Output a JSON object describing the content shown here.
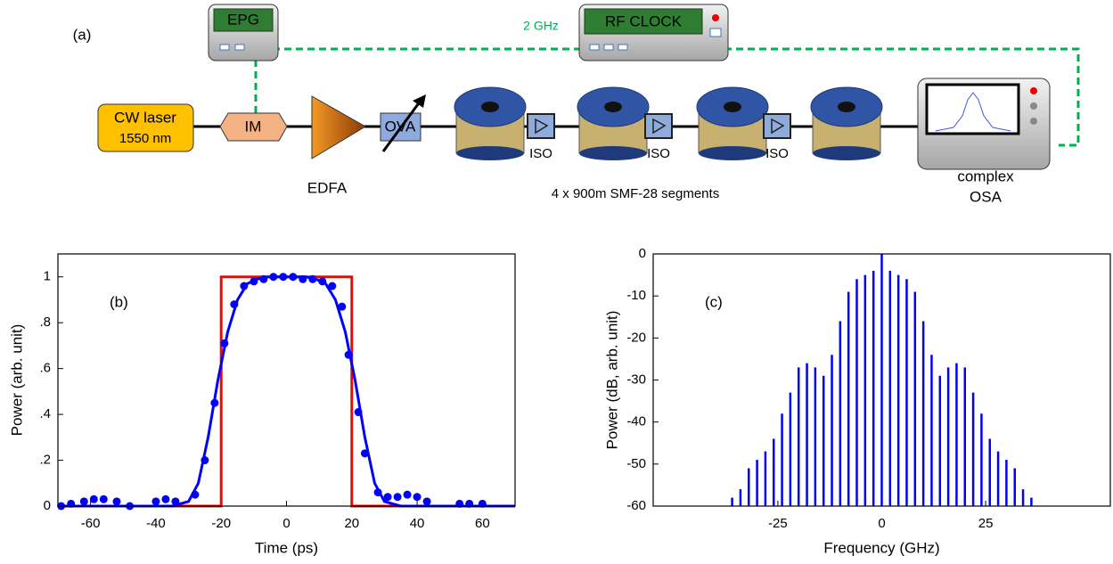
{
  "diagram": {
    "panel": "(a)",
    "epg": "EPG",
    "rf_rate": "2 GHz",
    "rf_clock": "RF CLOCK",
    "laser": [
      "CW laser",
      "1550 nm"
    ],
    "modulator": "IM",
    "amplifier": "EDFA",
    "attenuator": "OVA",
    "isolators": [
      "ISO",
      "ISO",
      "ISO"
    ],
    "fiber": "4 x 900m SMF-28 segments",
    "analyzer": [
      "complex",
      "OSA"
    ]
  },
  "chart_data": [
    {
      "type": "line",
      "annotation": "(b)",
      "x_label": "Time (ps)",
      "y_label": "Power (arb. unit)",
      "xlim": [
        -70,
        70
      ],
      "xticks": [
        -60,
        -40,
        -20,
        0,
        20,
        40,
        60
      ],
      "ylim": [
        0,
        1.1
      ],
      "yticks": [
        0,
        {
          "value": 0.2,
          "label": ".2"
        },
        {
          "value": 0.4,
          "label": ".4"
        },
        {
          "value": 0.6,
          "label": ".6"
        },
        {
          "value": 0.8,
          "label": ".8"
        },
        1
      ],
      "series": [
        {
          "color": "#ff0000",
          "x": [
            -70,
            -20,
            -20,
            20,
            20,
            70
          ],
          "values": [
            0,
            0,
            1,
            1,
            0,
            0
          ]
        },
        {
          "color": "#0000ff",
          "x": [
            -70,
            -35,
            -30,
            -27,
            -24,
            -21,
            -18,
            -15,
            -12,
            -9,
            -6,
            0,
            6,
            9,
            12,
            15,
            18,
            21,
            24,
            27,
            30,
            35,
            70
          ],
          "values": [
            0,
            0,
            0.02,
            0.1,
            0.3,
            0.55,
            0.76,
            0.9,
            0.97,
            0.99,
            1,
            1,
            1,
            0.99,
            0.97,
            0.9,
            0.76,
            0.55,
            0.3,
            0.1,
            0.02,
            0,
            0
          ]
        },
        {
          "color": "#0000ff",
          "marker": "circle",
          "x": [
            -69,
            -66,
            -62,
            -59,
            -56,
            -52,
            -48,
            -40,
            -37,
            -34,
            -28,
            -25,
            -22,
            -19,
            -16,
            -13,
            -10,
            -7,
            -4,
            -1,
            2,
            5,
            8,
            11,
            14,
            17,
            19,
            22,
            24,
            28,
            31,
            34,
            37,
            40,
            43,
            53,
            56,
            60
          ],
          "values": [
            0,
            0.01,
            0.02,
            0.03,
            0.03,
            0.02,
            0,
            0.02,
            0.03,
            0.02,
            0.05,
            0.2,
            0.45,
            0.71,
            0.88,
            0.96,
            0.98,
            0.99,
            1,
            1,
            1,
            0.99,
            0.99,
            0.98,
            0.96,
            0.87,
            0.66,
            0.41,
            0.23,
            0.06,
            0.04,
            0.04,
            0.05,
            0.04,
            0.02,
            0.01,
            0.01,
            0.01
          ]
        }
      ]
    },
    {
      "type": "stem",
      "annotation": "(c)",
      "x_label": "Frequency (GHz)",
      "y_label": "Power (dB, arb. unit)",
      "xlim": [
        -55,
        55
      ],
      "xticks": [
        -25,
        0,
        25
      ],
      "ylim": [
        -60,
        0
      ],
      "yticks": [
        -60,
        -50,
        -40,
        -30,
        -20,
        -10,
        0
      ],
      "color": "#0000ff",
      "x": [
        -36,
        -34,
        -32,
        -30,
        -28,
        -26,
        -24,
        -22,
        -20,
        -18,
        -16,
        -14,
        -12,
        -10,
        -8,
        -6,
        -4,
        -2,
        0,
        2,
        4,
        6,
        8,
        10,
        12,
        14,
        16,
        18,
        20,
        22,
        24,
        26,
        28,
        30,
        32,
        34,
        36
      ],
      "values": [
        -58,
        -56,
        -51,
        -49,
        -47,
        -44,
        -38,
        -33,
        -27,
        -26,
        -27,
        -29,
        -24,
        -16,
        -9,
        -6,
        -5,
        -4,
        0,
        -4,
        -5,
        -6,
        -9,
        -16,
        -24,
        -29,
        -27,
        -26,
        -27,
        -33,
        -38,
        -44,
        -47,
        -49,
        -51,
        -56,
        -58
      ]
    }
  ]
}
